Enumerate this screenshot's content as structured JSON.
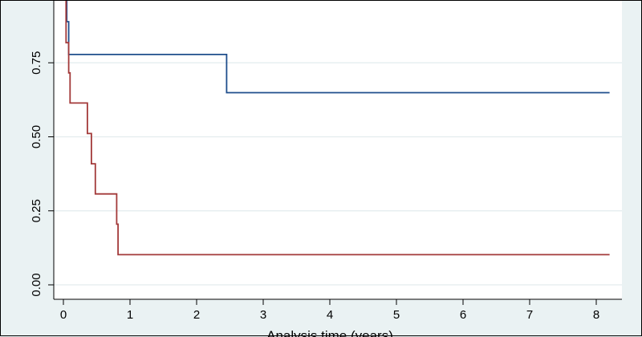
{
  "chart_data": {
    "type": "line",
    "xlabel": "Analysis time (years)",
    "ylabel": "",
    "xlim": [
      0,
      8.4
    ],
    "ylim": [
      0,
      1
    ],
    "x_ticks": [
      "0",
      "1",
      "2",
      "3",
      "4",
      "5",
      "6",
      "7",
      "8"
    ],
    "y_ticks": [
      "0.00",
      "0.25",
      "0.50",
      "0.75"
    ],
    "grid": true,
    "series": [
      {
        "color": "#1f4e8c",
        "x": [
          0,
          0.05,
          0.05,
          0.08,
          0.08,
          2.45,
          2.45,
          8.2
        ],
        "y": [
          1.0,
          1.0,
          0.889,
          0.889,
          0.778,
          0.778,
          0.649,
          0.649
        ]
      },
      {
        "color": "#a33a3a",
        "x": [
          0,
          0.04,
          0.04,
          0.08,
          0.08,
          0.1,
          0.1,
          0.36,
          0.36,
          0.42,
          0.42,
          0.48,
          0.48,
          0.8,
          0.8,
          0.82,
          0.82,
          8.2
        ],
        "y": [
          1.0,
          1.0,
          0.818,
          0.818,
          0.716,
          0.716,
          0.614,
          0.614,
          0.511,
          0.511,
          0.409,
          0.409,
          0.307,
          0.307,
          0.205,
          0.205,
          0.102,
          0.102
        ]
      }
    ]
  }
}
